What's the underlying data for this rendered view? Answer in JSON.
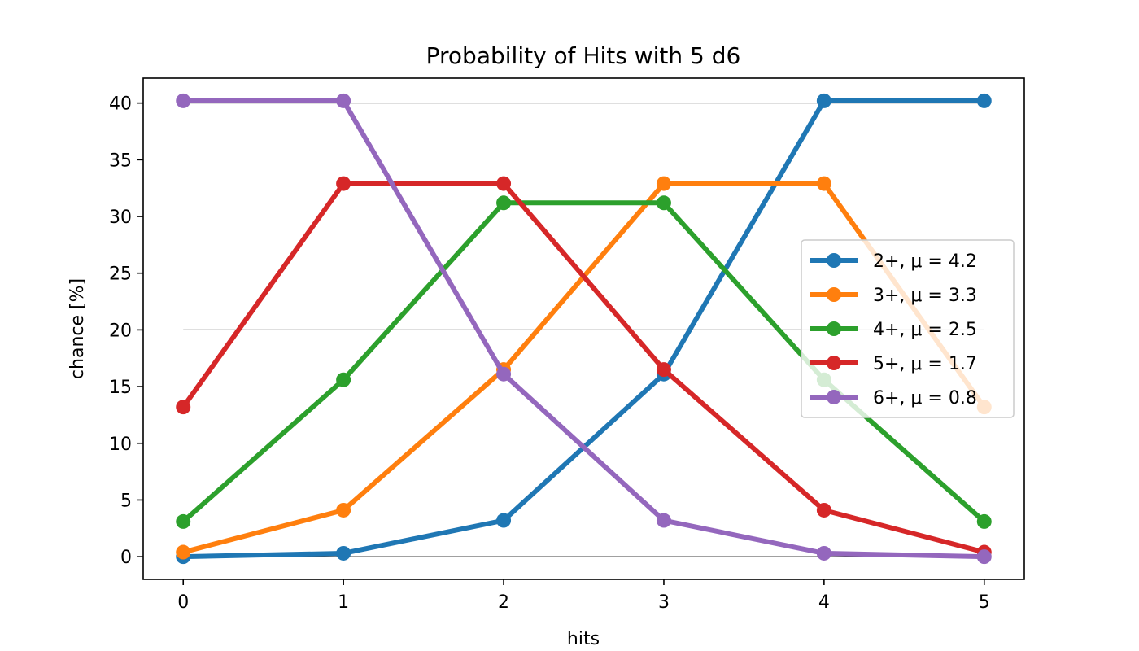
{
  "chart_data": {
    "type": "line",
    "title": "Probability of Hits with 5 d6",
    "xlabel": "hits",
    "ylabel": "chance [%]",
    "x": [
      0,
      1,
      2,
      3,
      4,
      5
    ],
    "xlim": [
      -0.25,
      5.25
    ],
    "ylim": [
      -2.0,
      42.2
    ],
    "xticks": [
      0,
      1,
      2,
      3,
      4,
      5
    ],
    "yticks": [
      0,
      5,
      10,
      15,
      20,
      25,
      30,
      35,
      40
    ],
    "grid": false,
    "reference_lines_y": [
      0,
      20,
      40
    ],
    "legend_position": "center-right",
    "series": [
      {
        "name": "2+, μ = 4.2",
        "color": "#1f77b4",
        "values": [
          0.0,
          0.3,
          3.2,
          16.1,
          40.2,
          40.2
        ]
      },
      {
        "name": "3+, μ = 3.3",
        "color": "#ff7f0e",
        "values": [
          0.4,
          4.1,
          16.5,
          32.9,
          32.9,
          13.2
        ]
      },
      {
        "name": "4+, μ = 2.5",
        "color": "#2ca02c",
        "values": [
          3.1,
          15.6,
          31.2,
          31.2,
          15.6,
          3.1
        ]
      },
      {
        "name": "5+, μ = 1.7",
        "color": "#d62728",
        "values": [
          13.2,
          32.9,
          32.9,
          16.5,
          4.1,
          0.4
        ]
      },
      {
        "name": "6+, μ = 0.8",
        "color": "#9467bd",
        "values": [
          40.2,
          40.2,
          16.1,
          3.2,
          0.3,
          0.0
        ]
      }
    ]
  }
}
